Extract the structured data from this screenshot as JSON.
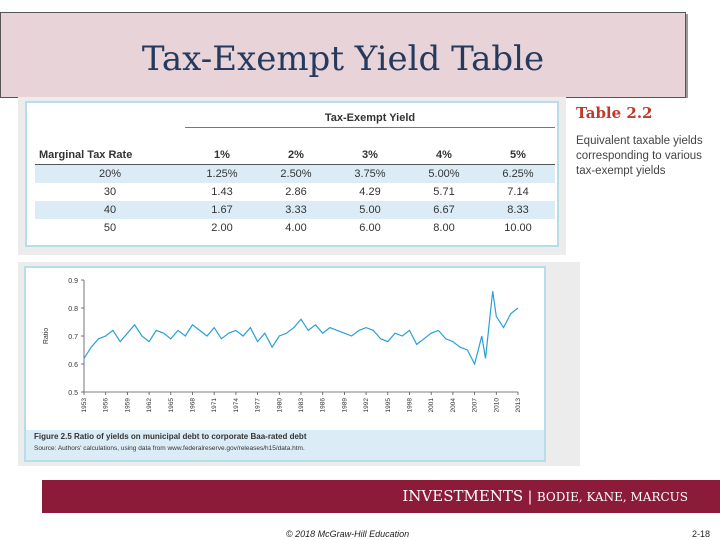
{
  "slide": {
    "title": "Tax-Exempt Yield Table"
  },
  "table": {
    "group_header": "Tax-Exempt Yield",
    "row_header": "Marginal Tax Rate",
    "columns": [
      "1%",
      "2%",
      "3%",
      "4%",
      "5%"
    ],
    "rows": [
      {
        "rate": "20%",
        "values": [
          "1.25%",
          "2.50%",
          "3.75%",
          "5.00%",
          "6.25%"
        ]
      },
      {
        "rate": "30",
        "values": [
          "1.43",
          "2.86",
          "4.29",
          "5.71",
          "7.14"
        ]
      },
      {
        "rate": "40",
        "values": [
          "1.67",
          "3.33",
          "5.00",
          "6.67",
          "8.33"
        ]
      },
      {
        "rate": "50",
        "values": [
          "2.00",
          "4.00",
          "6.00",
          "8.00",
          "10.00"
        ]
      }
    ],
    "caption_title": "Table 2.2",
    "caption_text": "Equivalent taxable yields corresponding to various tax-exempt yields"
  },
  "figure": {
    "caption": "Figure 2.5  Ratio of yields on municipal debt to corporate Baa-rated debt",
    "source": "Source: Authors' calculations, using data from www.federalreserve.gov/releases/h15/data.htm."
  },
  "chart_data": {
    "type": "line",
    "ylabel": "Ratio",
    "ylim": [
      0.5,
      0.9
    ],
    "yticks": [
      "0.9",
      "0.8",
      "0.7",
      "0.6",
      "0.5"
    ],
    "xticks": [
      "1953",
      "1956",
      "1959",
      "1962",
      "1965",
      "1968",
      "1971",
      "1974",
      "1977",
      "1980",
      "1983",
      "1986",
      "1989",
      "1992",
      "1995",
      "1998",
      "2001",
      "2004",
      "2007",
      "2010",
      "2013"
    ],
    "xlim": [
      1953,
      2013
    ],
    "grid": false,
    "x": [
      1953,
      1954,
      1955,
      1956,
      1957,
      1958,
      1959,
      1960,
      1961,
      1962,
      1963,
      1964,
      1965,
      1966,
      1967,
      1968,
      1969,
      1970,
      1971,
      1972,
      1973,
      1974,
      1975,
      1976,
      1977,
      1978,
      1979,
      1980,
      1981,
      1982,
      1983,
      1984,
      1985,
      1986,
      1987,
      1988,
      1989,
      1990,
      1991,
      1992,
      1993,
      1994,
      1995,
      1996,
      1997,
      1998,
      1999,
      2000,
      2001,
      2002,
      2003,
      2004,
      2005,
      2006,
      2007,
      2008,
      2008.5,
      2009,
      2009.5,
      2010,
      2011,
      2012,
      2013
    ],
    "values": [
      0.62,
      0.66,
      0.69,
      0.7,
      0.72,
      0.68,
      0.71,
      0.74,
      0.7,
      0.68,
      0.72,
      0.71,
      0.69,
      0.72,
      0.7,
      0.74,
      0.72,
      0.7,
      0.73,
      0.69,
      0.71,
      0.72,
      0.7,
      0.73,
      0.68,
      0.71,
      0.66,
      0.7,
      0.71,
      0.73,
      0.76,
      0.72,
      0.74,
      0.71,
      0.73,
      0.72,
      0.71,
      0.7,
      0.72,
      0.73,
      0.72,
      0.69,
      0.68,
      0.71,
      0.7,
      0.72,
      0.67,
      0.69,
      0.71,
      0.72,
      0.69,
      0.68,
      0.66,
      0.65,
      0.6,
      0.7,
      0.62,
      0.74,
      0.86,
      0.77,
      0.73,
      0.78,
      0.8
    ]
  },
  "footer": {
    "brand_main": "INVESTMENTS",
    "brand_separator": "|",
    "brand_authors": "BODIE, KANE, MARCUS",
    "copyright": "© 2018 McGraw-Hill Education",
    "page": "2-18"
  }
}
